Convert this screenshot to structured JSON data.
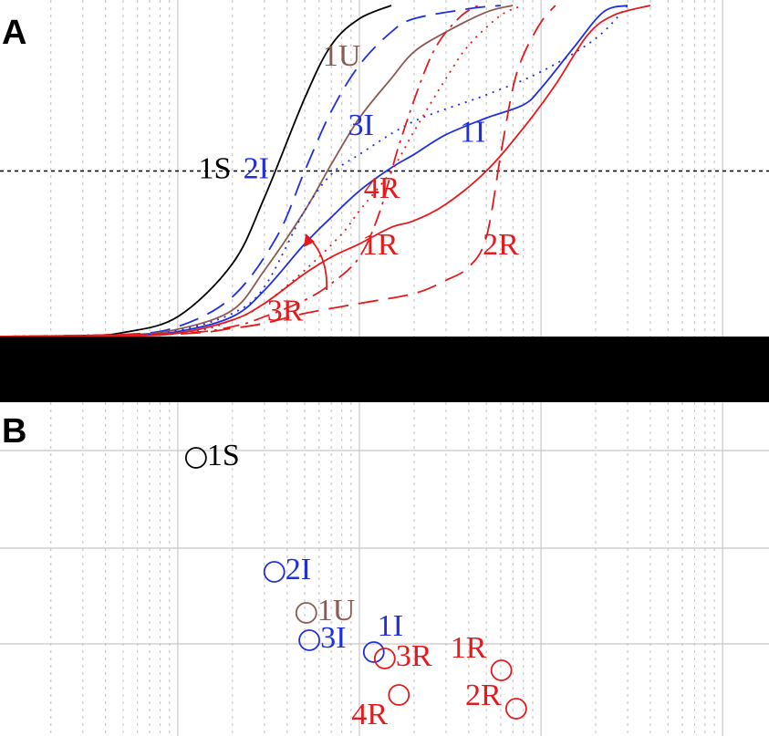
{
  "panels": {
    "a_label": "A",
    "b_label": "B"
  },
  "colors": {
    "S": "#000000",
    "I": "#1f2fe0",
    "U": "#8b5a52",
    "R": "#e41a1c",
    "separator": "#000000"
  },
  "chart_data": [
    {
      "panel": "A",
      "type": "line",
      "x_scale": "log",
      "xlim": [
        0.0105,
        180
      ],
      "ylim": [
        0,
        1
      ],
      "grid": true,
      "reference_line_y": 0.5,
      "title": "",
      "xlabel": "",
      "ylabel": "",
      "series": [
        {
          "name": "1S",
          "group": "S",
          "style": "solid",
          "points": [
            [
              0.0105,
              0
            ],
            [
              0.03,
              0.003
            ],
            [
              0.05,
              0.012
            ],
            [
              0.1,
              0.06
            ],
            [
              0.2,
              0.22
            ],
            [
              0.3,
              0.42
            ],
            [
              0.5,
              0.72
            ],
            [
              0.7,
              0.88
            ],
            [
              1,
              0.96
            ],
            [
              1.5,
              1
            ]
          ]
        },
        {
          "name": "2I",
          "group": "I",
          "style": "dashed",
          "points": [
            [
              0.0105,
              0
            ],
            [
              0.05,
              0.006
            ],
            [
              0.1,
              0.03
            ],
            [
              0.2,
              0.12
            ],
            [
              0.35,
              0.3
            ],
            [
              0.5,
              0.5
            ],
            [
              0.7,
              0.68
            ],
            [
              1,
              0.82
            ],
            [
              1.5,
              0.92
            ],
            [
              2,
              0.96
            ],
            [
              4,
              0.99
            ],
            [
              6,
              1
            ]
          ]
        },
        {
          "name": "1U",
          "group": "U",
          "style": "solid",
          "points": [
            [
              0.0105,
              0
            ],
            [
              0.05,
              0.005
            ],
            [
              0.1,
              0.022
            ],
            [
              0.2,
              0.08
            ],
            [
              0.3,
              0.2
            ],
            [
              0.5,
              0.38
            ],
            [
              0.7,
              0.52
            ],
            [
              1,
              0.66
            ],
            [
              1.5,
              0.78
            ],
            [
              2,
              0.86
            ],
            [
              3,
              0.92
            ],
            [
              5,
              0.98
            ],
            [
              7,
              1
            ]
          ]
        },
        {
          "name": "3I",
          "group": "I",
          "style": "dotted",
          "points": [
            [
              0.0105,
              0
            ],
            [
              0.05,
              0.004
            ],
            [
              0.1,
              0.018
            ],
            [
              0.2,
              0.07
            ],
            [
              0.3,
              0.15
            ],
            [
              0.5,
              0.38
            ],
            [
              0.7,
              0.49
            ],
            [
              1,
              0.55
            ],
            [
              2,
              0.65
            ],
            [
              5,
              0.73
            ],
            [
              10,
              0.8
            ],
            [
              20,
              0.9
            ],
            [
              30,
              1
            ]
          ]
        },
        {
          "name": "1I",
          "group": "I",
          "style": "solid",
          "points": [
            [
              0.0105,
              0
            ],
            [
              0.05,
              0.003
            ],
            [
              0.1,
              0.015
            ],
            [
              0.2,
              0.06
            ],
            [
              0.3,
              0.14
            ],
            [
              0.5,
              0.28
            ],
            [
              0.7,
              0.36
            ],
            [
              1,
              0.44
            ],
            [
              1.5,
              0.51
            ],
            [
              2,
              0.55
            ],
            [
              3,
              0.61
            ],
            [
              5,
              0.66
            ],
            [
              8,
              0.7
            ],
            [
              10,
              0.75
            ],
            [
              15,
              0.87
            ],
            [
              22,
              0.98
            ],
            [
              30,
              1
            ]
          ]
        },
        {
          "name": "4R",
          "group": "R",
          "style": "dotted",
          "points": [
            [
              0.0105,
              0
            ],
            [
              0.1,
              0.012
            ],
            [
              0.2,
              0.05
            ],
            [
              0.3,
              0.1
            ],
            [
              0.5,
              0.2
            ],
            [
              0.8,
              0.31
            ],
            [
              1,
              0.38
            ],
            [
              1.5,
              0.5
            ],
            [
              2,
              0.62
            ],
            [
              3,
              0.78
            ],
            [
              4,
              0.88
            ],
            [
              6,
              0.97
            ],
            [
              8,
              1
            ]
          ]
        },
        {
          "name": "3R",
          "group": "R",
          "style": "dashdot",
          "points": [
            [
              0.0105,
              0
            ],
            [
              0.1,
              0.01
            ],
            [
              0.2,
              0.03
            ],
            [
              0.3,
              0.06
            ],
            [
              0.5,
              0.11
            ],
            [
              0.7,
              0.16
            ],
            [
              1,
              0.24
            ],
            [
              1.3,
              0.38
            ],
            [
              1.7,
              0.6
            ],
            [
              2.5,
              0.85
            ],
            [
              3.5,
              0.96
            ],
            [
              4.5,
              1
            ]
          ]
        },
        {
          "name": "1R",
          "group": "R",
          "style": "solid",
          "points": [
            [
              0.0105,
              0
            ],
            [
              0.05,
              0.002
            ],
            [
              0.1,
              0.01
            ],
            [
              0.2,
              0.05
            ],
            [
              0.3,
              0.1
            ],
            [
              0.5,
              0.19
            ],
            [
              0.7,
              0.24
            ],
            [
              1,
              0.28
            ],
            [
              1.5,
              0.33
            ],
            [
              2,
              0.35
            ],
            [
              3,
              0.4
            ],
            [
              5,
              0.5
            ],
            [
              8,
              0.63
            ],
            [
              12,
              0.76
            ],
            [
              18,
              0.91
            ],
            [
              25,
              0.97
            ],
            [
              40,
              1
            ]
          ]
        },
        {
          "name": "2R",
          "group": "R",
          "style": "dashed",
          "points": [
            [
              0.0105,
              0
            ],
            [
              0.1,
              0.008
            ],
            [
              0.2,
              0.025
            ],
            [
              0.3,
              0.04
            ],
            [
              0.5,
              0.07
            ],
            [
              1,
              0.1
            ],
            [
              2,
              0.13
            ],
            [
              3,
              0.17
            ],
            [
              4,
              0.21
            ],
            [
              5,
              0.3
            ],
            [
              6,
              0.55
            ],
            [
              7,
              0.75
            ],
            [
              8,
              0.85
            ],
            [
              10,
              0.95
            ],
            [
              12,
              1
            ]
          ]
        }
      ],
      "annotations": [
        {
          "text": "1S",
          "group": "S",
          "x": 0.16,
          "y": 0.5
        },
        {
          "text": "2I",
          "group": "I",
          "x": 0.27,
          "y": 0.5
        },
        {
          "text": "1U",
          "group": "U",
          "x": 0.8,
          "y": 0.84
        },
        {
          "text": "3I",
          "group": "I",
          "x": 1.02,
          "y": 0.63
        },
        {
          "text": "1I",
          "group": "I",
          "x": 4.2,
          "y": 0.61
        },
        {
          "text": "4R",
          "group": "R",
          "x": 1.33,
          "y": 0.44
        },
        {
          "text": "1R",
          "group": "R",
          "x": 1.3,
          "y": 0.27
        },
        {
          "text": "2R",
          "group": "R",
          "x": 6.0,
          "y": 0.27
        },
        {
          "text": "3R",
          "group": "R",
          "x": 0.39,
          "y": 0.07
        }
      ]
    },
    {
      "panel": "B",
      "type": "scatter",
      "x_scale": "log",
      "xlim": [
        0.0105,
        180
      ],
      "grid": true,
      "title": "",
      "xlabel": "",
      "ylabel": "",
      "points": [
        {
          "name": "1S",
          "group": "S",
          "x": 0.126,
          "y": 3.05,
          "label_side": "right"
        },
        {
          "name": "2I",
          "group": "I",
          "x": 0.34,
          "y": 1.8,
          "label_side": "right"
        },
        {
          "name": "1U",
          "group": "U",
          "x": 0.51,
          "y": 1.35,
          "label_side": "right"
        },
        {
          "name": "3I",
          "group": "I",
          "x": 0.53,
          "y": 1.05,
          "label_side": "right"
        },
        {
          "name": "1I",
          "group": "I",
          "x": 1.2,
          "y": 0.92,
          "label_side": "above"
        },
        {
          "name": "3R",
          "group": "R",
          "x": 1.38,
          "y": 0.85,
          "label_side": "right"
        },
        {
          "name": "4R",
          "group": "R",
          "x": 1.65,
          "y": 0.45,
          "label_side": "below-left"
        },
        {
          "name": "1R",
          "group": "R",
          "x": 6.05,
          "y": 0.72,
          "label_side": "above-left"
        },
        {
          "name": "2R",
          "group": "R",
          "x": 7.3,
          "y": 0.3,
          "label_side": "left"
        }
      ]
    }
  ]
}
